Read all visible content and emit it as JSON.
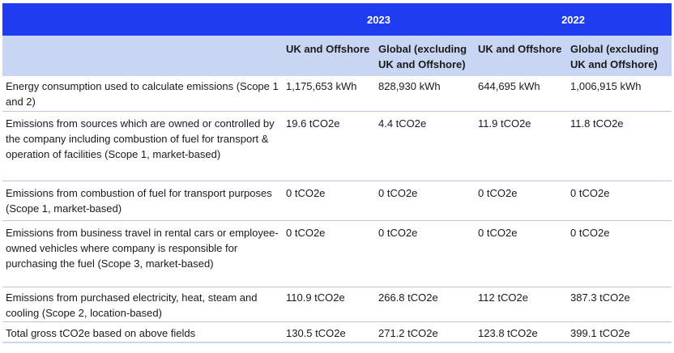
{
  "header": {
    "years": [
      "2023",
      "2022"
    ],
    "columns": [
      "UK and Offshore",
      "Global (excluding UK and Offshore)",
      "UK and Offshore",
      "Global (excluding UK and Offshore)"
    ]
  },
  "rows": [
    {
      "label": "Energy consumption used to calculate emissions (Scope 1 and 2)",
      "values": [
        "1,175,653 kWh",
        "828,930 kWh",
        "644,695 kWh",
        "1,006,915 kWh"
      ]
    },
    {
      "label": "Emissions from sources which are owned or controlled by the company including combustion of fuel for transport & operation of facilities (Scope 1, market-based)",
      "values": [
        "19.6 tCO2e",
        "4.4 tCO2e",
        "11.9 tCO2e",
        "11.8 tCO2e"
      ]
    },
    {
      "label": "Emissions from combustion of fuel for transport purposes (Scope 1, market-based)",
      "values": [
        "0 tCO2e",
        "0 tCO2e",
        "0 tCO2e",
        "0 tCO2e"
      ]
    },
    {
      "label": "Emissions from business travel in rental cars or employee-owned vehicles where company is responsible for purchasing the fuel (Scope 3, market-based)",
      "values": [
        "0 tCO2e",
        "0 tCO2e",
        "0 tCO2e",
        "0 tCO2e"
      ]
    },
    {
      "label": "Emissions from purchased electricity, heat, steam and cooling (Scope 2, location-based)",
      "values": [
        "110.9 tCO2e",
        "266.8 tCO2e",
        "112 tCO2e",
        "387.3 tCO2e"
      ]
    },
    {
      "label": "Total gross tCO2e based on above fields",
      "values": [
        "130.5 tCO2e",
        "271.2 tCO2e",
        "123.8 tCO2e",
        "399.1 tCO2e"
      ]
    }
  ]
}
